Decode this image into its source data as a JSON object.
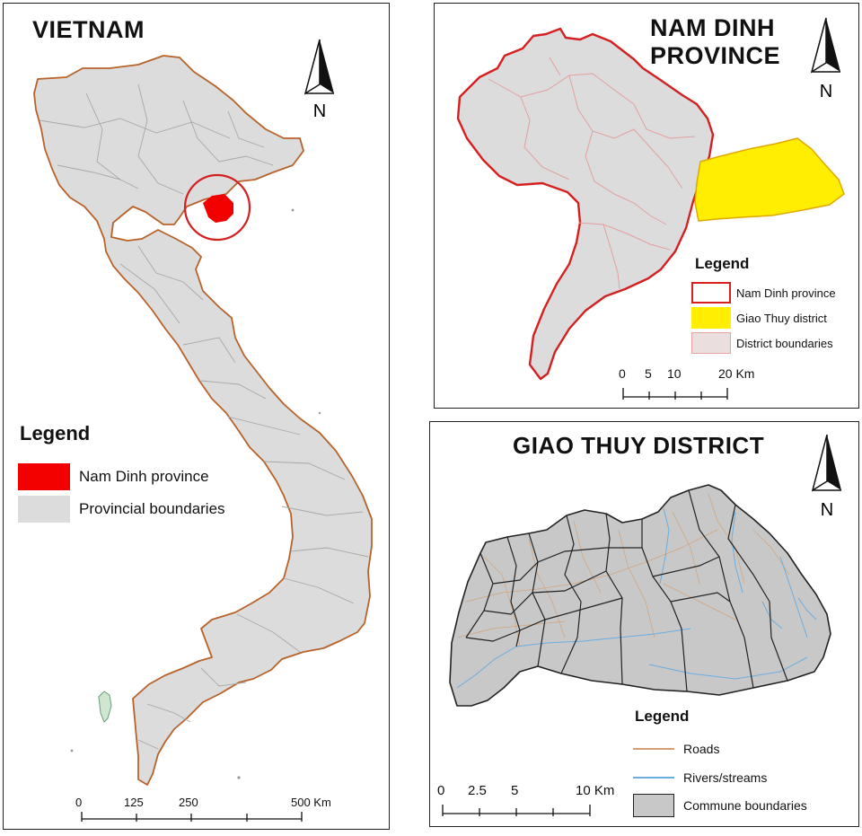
{
  "vietnam": {
    "title": "VIETNAM",
    "north_label": "N",
    "legend": {
      "title": "Legend",
      "items": [
        {
          "label": "Nam Dinh province",
          "color": "#f20000",
          "kind": "fill"
        },
        {
          "label": "Provincial boundaries",
          "color": "#dcdcdc",
          "kind": "fill"
        }
      ]
    },
    "scale": {
      "ticks": [
        "0",
        "125",
        "250"
      ],
      "end": "500 Km"
    },
    "colors": {
      "land": "#dcdcdc",
      "coast": "#b8622a",
      "inner": "#a8a8a8",
      "highlight": "#f20000",
      "circle": "#d42020"
    }
  },
  "namdinh": {
    "title_line1": "NAM DINH",
    "title_line2": "PROVINCE",
    "north_label": "N",
    "legend": {
      "title": "Legend",
      "items": [
        {
          "label": "Nam Dinh province",
          "color": "#d42020",
          "kind": "outline"
        },
        {
          "label": "Giao Thuy district",
          "color": "#ffee00",
          "kind": "fill"
        },
        {
          "label": "District boundaries",
          "color": "#e8c8c8",
          "kind": "fill"
        }
      ]
    },
    "scale": {
      "ticks": [
        "0",
        "5",
        "10"
      ],
      "end": "20 Km"
    },
    "colors": {
      "land": "#dcdcdc",
      "outline": "#d42020",
      "district": "#ffee00",
      "district_lines": "#e2a0a0"
    }
  },
  "giaothuy": {
    "title": "GIAO THUY DISTRICT",
    "north_label": "N",
    "legend": {
      "title": "Legend",
      "items": [
        {
          "label": "Roads",
          "color": "#d4a070",
          "kind": "line"
        },
        {
          "label": "Rivers/streams",
          "color": "#6aaee0",
          "kind": "line"
        },
        {
          "label": "Commune boundaries",
          "color": "#c8c8c8",
          "kind": "box"
        }
      ]
    },
    "scale": {
      "ticks": [
        "0",
        "2.5",
        "5"
      ],
      "end": "10 Km"
    },
    "colors": {
      "land": "#c8c8c8",
      "boundary": "#222222",
      "roads": "#d4a070",
      "rivers": "#6aaee0"
    }
  }
}
